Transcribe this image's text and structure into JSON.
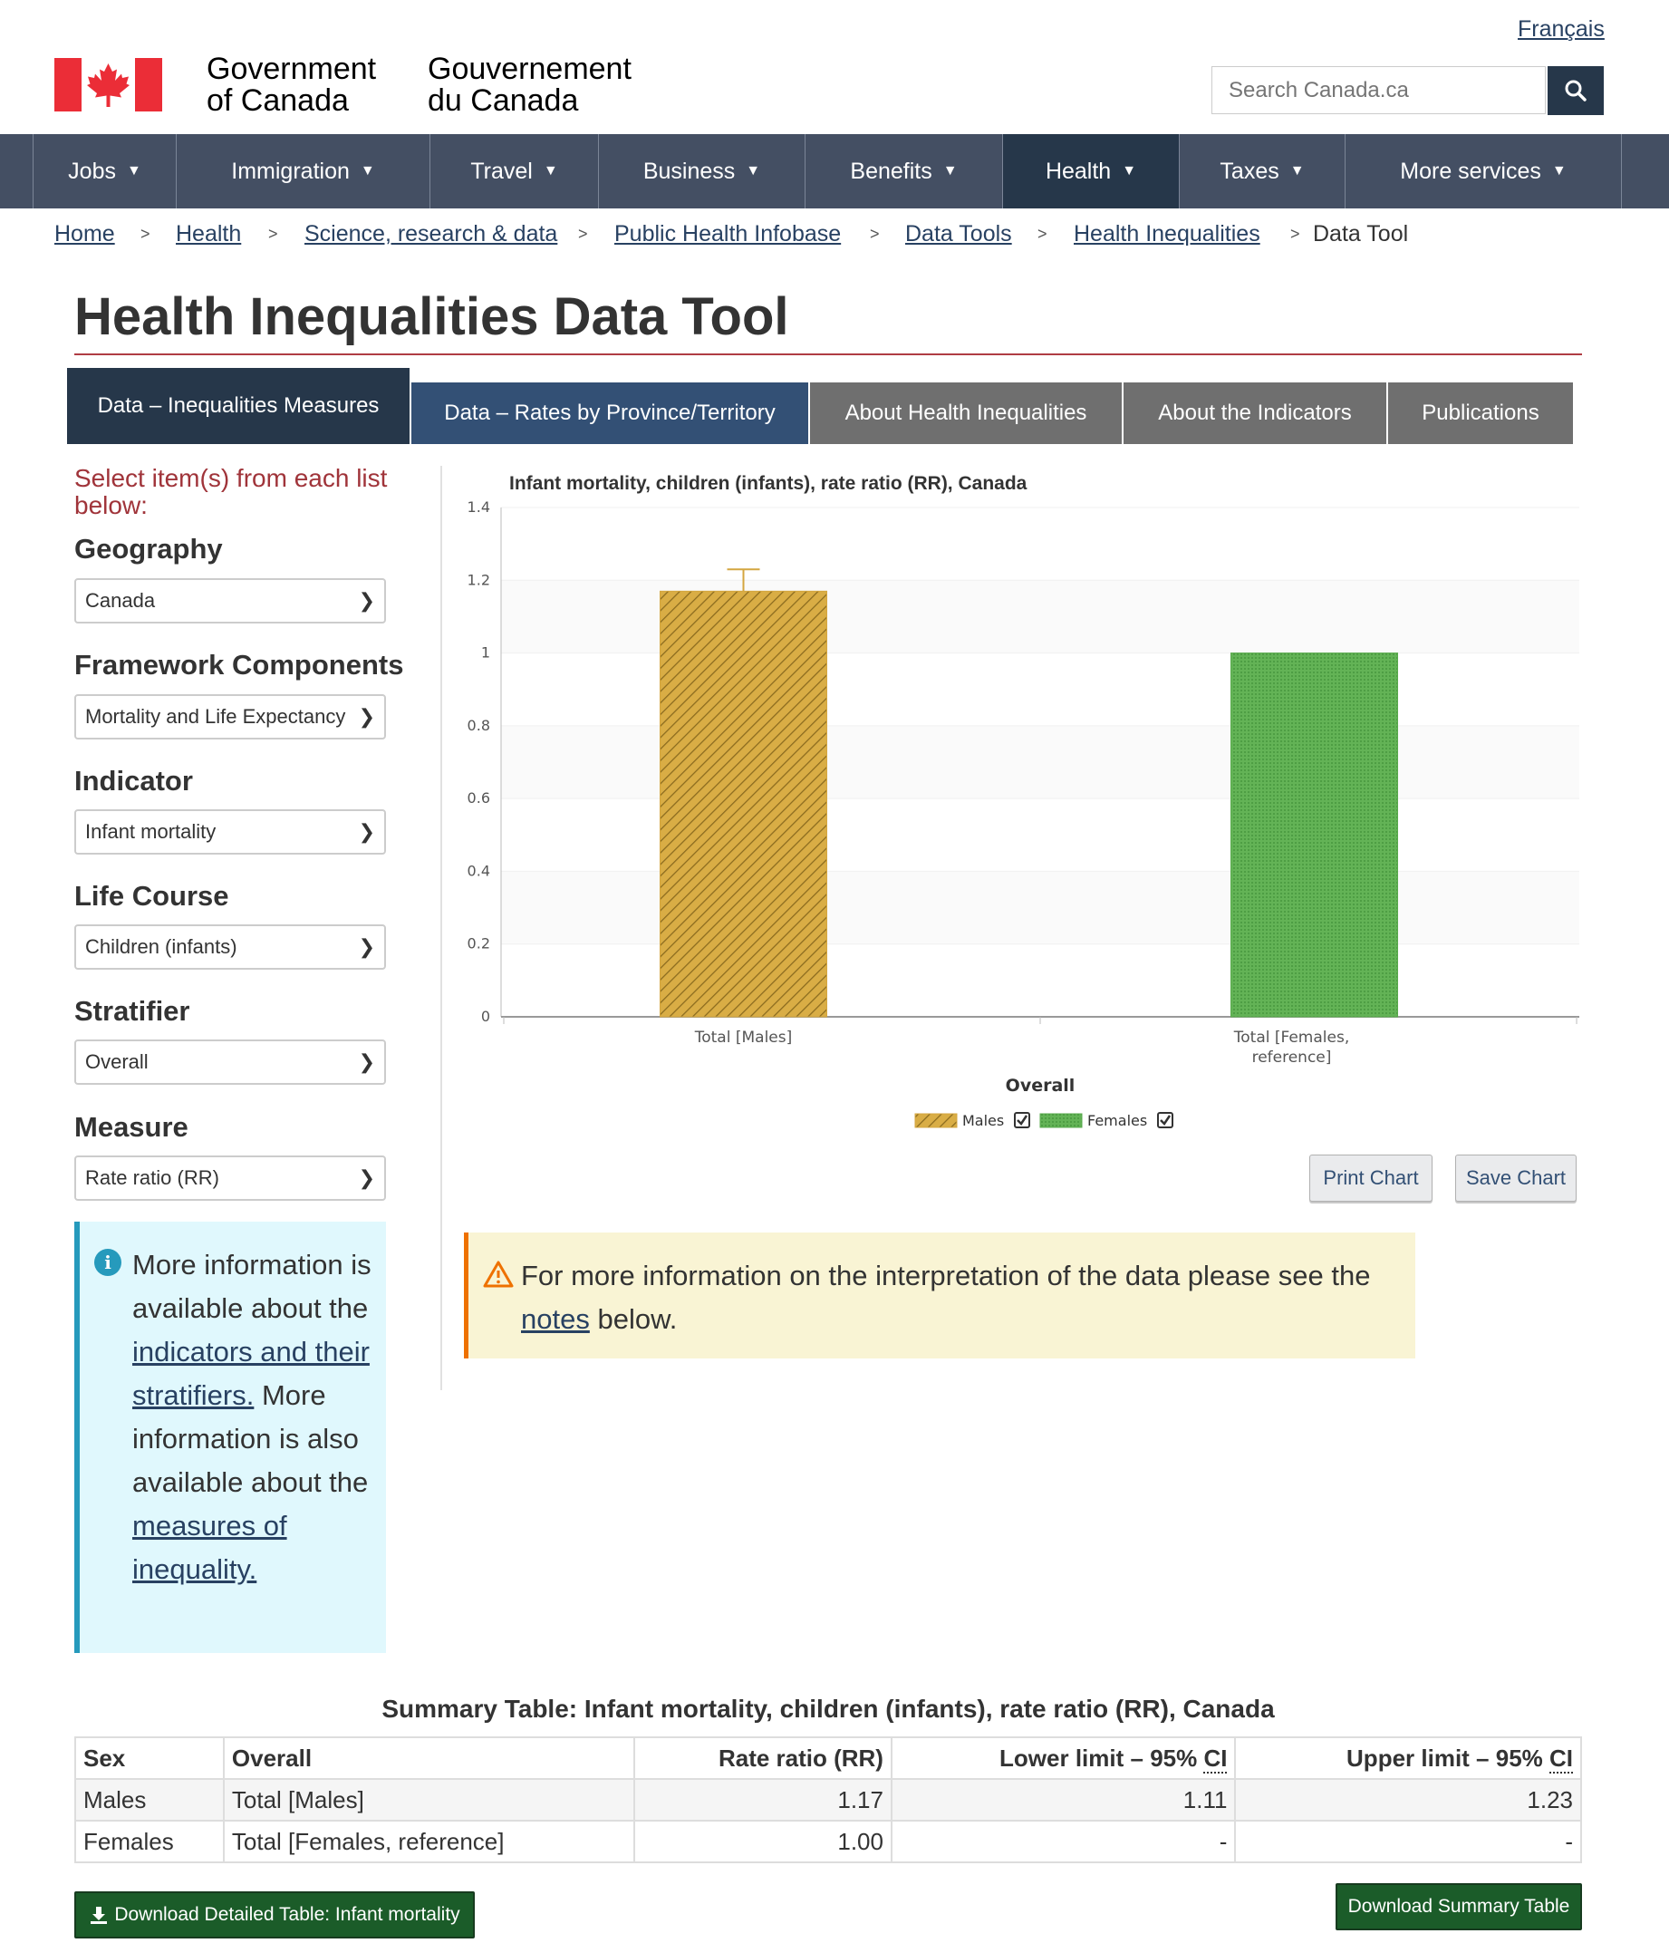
{
  "header": {
    "language_link": "Français",
    "fip_english": [
      "Government",
      "of Canada"
    ],
    "fip_french": [
      "Gouvernement",
      "du Canada"
    ],
    "search_placeholder": "Search Canada.ca",
    "search_icon": "magnifier-icon"
  },
  "nav": {
    "items": [
      {
        "label": "Jobs"
      },
      {
        "label": "Immigration"
      },
      {
        "label": "Travel"
      },
      {
        "label": "Business"
      },
      {
        "label": "Benefits"
      },
      {
        "label": "Health"
      },
      {
        "label": "Taxes"
      },
      {
        "label": "More services"
      }
    ],
    "active": "Health"
  },
  "breadcrumb": {
    "items": [
      "Home",
      "Health",
      "Science, research & data",
      "Public Health Infobase",
      "Data Tools",
      "Health Inequalities",
      "Data Tool"
    ],
    "separator": ">"
  },
  "page_title": "Health Inequalities Data Tool",
  "tabs": [
    {
      "label": "Data – Inequalities Measures"
    },
    {
      "label": "Data – Rates by Province/Territory"
    },
    {
      "label": "About Health Inequalities"
    },
    {
      "label": "About the Indicators"
    },
    {
      "label": "Publications"
    }
  ],
  "sidebar": {
    "prompt": "Select item(s) from each list below:",
    "filters": [
      {
        "label": "Geography",
        "value": "Canada"
      },
      {
        "label": "Framework Components",
        "value": "Mortality and Life Expectancy"
      },
      {
        "label": "Indicator",
        "value": "Infant mortality"
      },
      {
        "label": "Life Course",
        "value": "Children (infants)"
      },
      {
        "label": "Stratifier",
        "value": "Overall"
      },
      {
        "label": "Measure",
        "value": "Rate ratio (RR)"
      }
    ],
    "info": {
      "text_1": "More information is available about the",
      "link_1": "indicators and their stratifiers.",
      "text_2": "More information is also available about the",
      "link_2": "measures of inequality."
    }
  },
  "chart_data": {
    "type": "bar",
    "title": "Infant mortality, children (infants), rate ratio (RR), Canada",
    "xlabel": "Overall",
    "categories": [
      "Total [Males]",
      "Total [Females, reference]"
    ],
    "series": [
      {
        "name": "Males",
        "values": [
          1.17,
          null
        ],
        "color": "#d4a640",
        "pattern": "diagonal-hatch",
        "error_upper": [
          1.23,
          null
        ]
      },
      {
        "name": "Females",
        "values": [
          null,
          1.0
        ],
        "color": "#5aab4d",
        "pattern": "dots"
      }
    ],
    "ylim": [
      0,
      1.4
    ],
    "yticks": [
      "0",
      "0.2",
      "0.4",
      "0.6",
      "0.8",
      "1",
      "1.2",
      "1.4"
    ],
    "grid": true,
    "legend_position": "bottom"
  },
  "chart_buttons": {
    "print": "Print Chart",
    "save": "Save Chart"
  },
  "warning": {
    "text_before": "For more information on the interpretation of the data please see the",
    "link": "notes",
    "text_after": "below."
  },
  "summary_table": {
    "caption": "Summary Table: Infant mortality, children (infants), rate ratio (RR), Canada",
    "headers": [
      "Sex",
      "Overall",
      "Rate ratio (RR)",
      "Lower limit – 95%",
      "Upper limit – 95%"
    ],
    "ci_abbr": "CI",
    "rows": [
      [
        "Males",
        "Total [Males]",
        "1.17",
        "1.11",
        "1.23"
      ],
      [
        "Females",
        "Total [Females, reference]",
        "1.00",
        "-",
        "-"
      ]
    ]
  },
  "downloads": {
    "detailed": "Download Detailed Table: Infant mortality",
    "summary": "Download Summary Table"
  },
  "colors": {
    "nav_bg": "#444f63",
    "nav_active": "#26374a",
    "link": "#284162",
    "title_rule": "#af3c43",
    "males": "#d4a640",
    "females": "#5aab4d",
    "download_green": "#1b5c29"
  }
}
